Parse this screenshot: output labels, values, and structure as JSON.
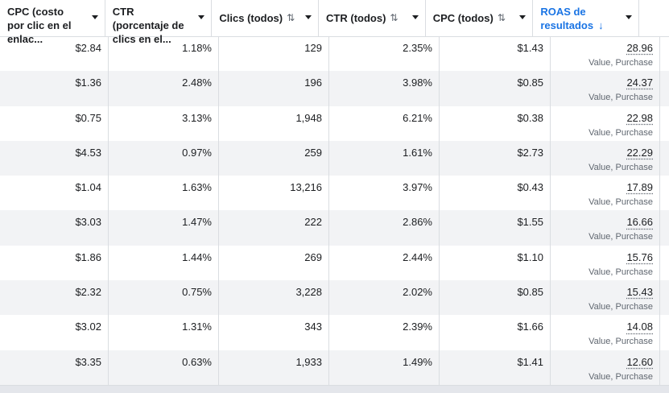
{
  "columns": [
    {
      "label": "CPC (costo por clic en el enlac...",
      "sort": ""
    },
    {
      "label": "CTR (porcentaje de clics en el...",
      "sort": ""
    },
    {
      "label": "Clics (todos)",
      "sort": "⇅"
    },
    {
      "label": "CTR (todos)",
      "sort": "⇅"
    },
    {
      "label": "CPC (todos)",
      "sort": "⇅"
    },
    {
      "label": "ROAS de resultados",
      "sort": "↓"
    }
  ],
  "rows": [
    {
      "cpc_link": "$2.84",
      "ctr_link": "1.18%",
      "clicks": "129",
      "ctr_all": "2.35%",
      "cpc_all": "$1.43",
      "roas": "28.96",
      "roas_sub": "Value, Purchase"
    },
    {
      "cpc_link": "$1.36",
      "ctr_link": "2.48%",
      "clicks": "196",
      "ctr_all": "3.98%",
      "cpc_all": "$0.85",
      "roas": "24.37",
      "roas_sub": "Value, Purchase"
    },
    {
      "cpc_link": "$0.75",
      "ctr_link": "3.13%",
      "clicks": "1,948",
      "ctr_all": "6.21%",
      "cpc_all": "$0.38",
      "roas": "22.98",
      "roas_sub": "Value, Purchase"
    },
    {
      "cpc_link": "$4.53",
      "ctr_link": "0.97%",
      "clicks": "259",
      "ctr_all": "1.61%",
      "cpc_all": "$2.73",
      "roas": "22.29",
      "roas_sub": "Value, Purchase"
    },
    {
      "cpc_link": "$1.04",
      "ctr_link": "1.63%",
      "clicks": "13,216",
      "ctr_all": "3.97%",
      "cpc_all": "$0.43",
      "roas": "17.89",
      "roas_sub": "Value, Purchase"
    },
    {
      "cpc_link": "$3.03",
      "ctr_link": "1.47%",
      "clicks": "222",
      "ctr_all": "2.86%",
      "cpc_all": "$1.55",
      "roas": "16.66",
      "roas_sub": "Value, Purchase"
    },
    {
      "cpc_link": "$1.86",
      "ctr_link": "1.44%",
      "clicks": "269",
      "ctr_all": "2.44%",
      "cpc_all": "$1.10",
      "roas": "15.76",
      "roas_sub": "Value, Purchase"
    },
    {
      "cpc_link": "$2.32",
      "ctr_link": "0.75%",
      "clicks": "3,228",
      "ctr_all": "2.02%",
      "cpc_all": "$0.85",
      "roas": "15.43",
      "roas_sub": "Value, Purchase"
    },
    {
      "cpc_link": "$3.02",
      "ctr_link": "1.31%",
      "clicks": "343",
      "ctr_all": "2.39%",
      "cpc_all": "$1.66",
      "roas": "14.08",
      "roas_sub": "Value, Purchase"
    },
    {
      "cpc_link": "$3.35",
      "ctr_link": "0.63%",
      "clicks": "1,933",
      "ctr_all": "1.49%",
      "cpc_all": "$1.41",
      "roas": "12.60",
      "roas_sub": "Value, Purchase"
    }
  ],
  "colors": {
    "accent": "#1a74e4",
    "row_alt": "#f2f3f5",
    "border": "#dadde1"
  }
}
